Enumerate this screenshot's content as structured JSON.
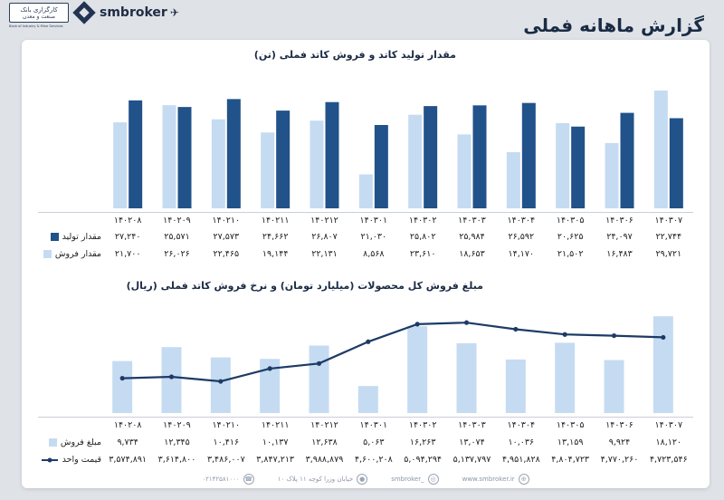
{
  "header": {
    "title": "گزارش ماهانه فملی",
    "brand": "smbroker",
    "logo_line1": "کارگزاری بانک",
    "logo_line2": "صنعت و معدن",
    "logo_tagline": "Bank of Industry & Mine Services"
  },
  "colors": {
    "dark_blue": "#21528a",
    "light_blue": "#c5dbf2",
    "line": "#1d3b66"
  },
  "chart_data": [
    {
      "type": "bar",
      "title": "مقدار تولید کاتد و فروش کاتد فملی (تن)",
      "categories": [
        "۱۴۰۲۰۸",
        "۱۴۰۲۰۹",
        "۱۴۰۲۱۰",
        "۱۴۰۲۱۱",
        "۱۴۰۲۱۲",
        "۱۴۰۳۰۱",
        "۱۴۰۳۰۲",
        "۱۴۰۳۰۳",
        "۱۴۰۳۰۴",
        "۱۴۰۳۰۵",
        "۱۴۰۳۰۶",
        "۱۴۰۳۰۷"
      ],
      "series": [
        {
          "name": "مقدار تولید",
          "values": [
            27240,
            25571,
            27573,
            24662,
            26807,
            21030,
            25802,
            25984,
            26592,
            20625,
            24097,
            22744
          ],
          "labels": [
            "۲۷,۲۴۰",
            "۲۵,۵۷۱",
            "۲۷,۵۷۳",
            "۲۴,۶۶۲",
            "۲۶,۸۰۷",
            "۲۱,۰۳۰",
            "۲۵,۸۰۲",
            "۲۵,۹۸۴",
            "۲۶,۵۹۲",
            "۲۰,۶۲۵",
            "۲۴,۰۹۷",
            "۲۲,۷۴۴"
          ]
        },
        {
          "name": "مقدار فروش",
          "values": [
            21700,
            26026,
            22465,
            19144,
            22131,
            8568,
            23610,
            18653,
            14170,
            21502,
            16483,
            29721
          ],
          "labels": [
            "۲۱,۷۰۰",
            "۲۶,۰۲۶",
            "۲۲,۴۶۵",
            "۱۹,۱۴۴",
            "۲۲,۱۳۱",
            "۸,۵۶۸",
            "۲۳,۶۱۰",
            "۱۸,۶۵۳",
            "۱۴,۱۷۰",
            "۲۱,۵۰۲",
            "۱۶,۴۸۳",
            "۲۹,۷۲۱"
          ]
        }
      ]
    },
    {
      "type": "bar+line",
      "title": "مبلغ فروش کل محصولات (میلیارد تومان) و نرخ فروش کاتد فملی (ریال)",
      "categories": [
        "۱۴۰۲۰۸",
        "۱۴۰۲۰۹",
        "۱۴۰۲۱۰",
        "۱۴۰۲۱۱",
        "۱۴۰۲۱۲",
        "۱۴۰۳۰۱",
        "۱۴۰۳۰۲",
        "۱۴۰۳۰۳",
        "۱۴۰۳۰۴",
        "۱۴۰۳۰۵",
        "۱۴۰۳۰۶",
        "۱۴۰۳۰۷"
      ],
      "series": [
        {
          "name": "مبلغ فروش",
          "values": [
            9734,
            12345,
            10416,
            10137,
            12638,
            5063,
            16263,
            13074,
            10036,
            13159,
            9924,
            18120
          ],
          "labels": [
            "۹,۷۳۴",
            "۱۲,۳۴۵",
            "۱۰,۴۱۶",
            "۱۰,۱۳۷",
            "۱۲,۶۳۸",
            "۵,۰۶۳",
            "۱۶,۲۶۳",
            "۱۳,۰۷۴",
            "۱۰,۰۳۶",
            "۱۳,۱۵۹",
            "۹,۹۲۴",
            "۱۸,۱۲۰"
          ]
        },
        {
          "name": "قیمت واحد",
          "values": [
            3574891,
            3614800,
            3486007,
            3847213,
            3988879,
            4600208,
            5094294,
            5137797,
            4951828,
            4804723,
            4770260,
            4723546
          ],
          "labels": [
            "۳,۵۷۴,۸۹۱",
            "۳,۶۱۴,۸۰۰",
            "۳,۴۸۶,۰۰۷",
            "۳,۸۴۷,۲۱۳",
            "۳,۹۸۸,۸۷۹",
            "۴,۶۰۰,۲۰۸",
            "۵,۰۹۴,۲۹۴",
            "۵,۱۳۷,۷۹۷",
            "۴,۹۵۱,۸۲۸",
            "۴,۸۰۴,۷۲۳",
            "۴,۷۷۰,۲۶۰",
            "۴,۷۲۳,۵۴۶"
          ]
        }
      ]
    }
  ],
  "footer": {
    "website": "www.smbroker.ir",
    "instagram": "smbroker_",
    "address": "خیابان وزرا کوچه ۱۱ پلاک ۱۰",
    "phone": "۰۲۱۴۲۵۸۱۰۰۰"
  }
}
